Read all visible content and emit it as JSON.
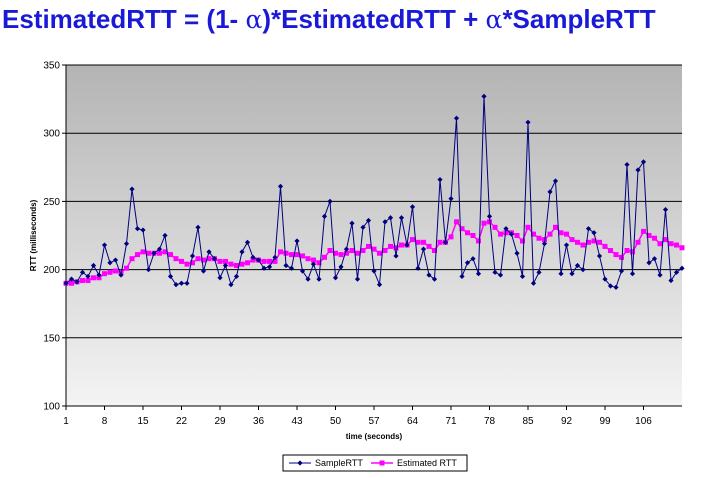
{
  "title": {
    "prefix": "EstimatedRTT = (1- ",
    "alpha1": "α",
    "middle": ")*EstimatedRTT + ",
    "alpha2": "α",
    "suffix": "*SampleRTT"
  },
  "colors": {
    "title": "#1a1ad6",
    "sample": "#000080",
    "estimated": "#ff00ff",
    "plot_bg_top": "#b4b4b4",
    "plot_bg_bottom": "#f4f4f4"
  },
  "chart_data": {
    "type": "line",
    "xlabel": "time (seconds)",
    "ylabel": "RTT (milliseconds)",
    "ylim": [
      100,
      350
    ],
    "yticks": [
      100,
      150,
      200,
      250,
      300,
      350
    ],
    "xlim": [
      1,
      113
    ],
    "xticks": [
      1,
      8,
      15,
      22,
      29,
      36,
      43,
      50,
      57,
      64,
      71,
      78,
      85,
      92,
      99,
      106
    ],
    "grid": "horizontal",
    "legend_position": "bottom",
    "x": [
      1,
      2,
      3,
      4,
      5,
      6,
      7,
      8,
      9,
      10,
      11,
      12,
      13,
      14,
      15,
      16,
      17,
      18,
      19,
      20,
      21,
      22,
      23,
      24,
      25,
      26,
      27,
      28,
      29,
      30,
      31,
      32,
      33,
      34,
      35,
      36,
      37,
      38,
      39,
      40,
      41,
      42,
      43,
      44,
      45,
      46,
      47,
      48,
      49,
      50,
      51,
      52,
      53,
      54,
      55,
      56,
      57,
      58,
      59,
      60,
      61,
      62,
      63,
      64,
      65,
      66,
      67,
      68,
      69,
      70,
      71,
      72,
      73,
      74,
      75,
      76,
      77,
      78,
      79,
      80,
      81,
      82,
      83,
      84,
      85,
      86,
      87,
      88,
      89,
      90,
      91,
      92,
      93,
      94,
      95,
      96,
      97,
      98,
      99,
      100,
      101,
      102,
      103,
      104,
      105,
      106,
      107,
      108,
      109,
      110,
      111,
      112,
      113
    ],
    "series": [
      {
        "name": "SampleRTT",
        "marker": "diamond",
        "values": [
          190,
          193,
          191,
          198,
          195,
          203,
          196,
          218,
          205,
          207,
          196,
          219,
          259,
          230,
          229,
          200,
          212,
          215,
          225,
          195,
          189,
          190,
          190,
          210,
          231,
          199,
          213,
          208,
          194,
          203,
          189,
          195,
          213,
          220,
          209,
          207,
          201,
          202,
          209,
          261,
          203,
          201,
          221,
          199,
          193,
          204,
          193,
          239,
          250,
          194,
          202,
          215,
          234,
          193,
          231,
          236,
          199,
          189,
          235,
          238,
          210,
          238,
          218,
          246,
          201,
          215,
          196,
          193,
          266,
          220,
          252,
          311,
          195,
          205,
          208,
          197,
          327,
          239,
          198,
          196,
          230,
          226,
          212,
          195,
          308,
          190,
          198,
          219,
          257,
          265,
          197,
          218,
          197,
          203,
          200,
          230,
          227,
          210,
          193,
          188,
          187,
          199,
          277,
          197,
          273,
          279,
          205,
          208,
          196,
          244,
          192,
          198,
          201
        ],
        "estimated": false
      },
      {
        "name": "Estimated RTT",
        "marker": "square",
        "values": [
          190,
          190,
          191,
          192,
          192,
          194,
          194,
          197,
          198,
          199,
          198,
          201,
          208,
          211,
          213,
          212,
          212,
          212,
          213,
          211,
          208,
          206,
          204,
          205,
          208,
          207,
          208,
          208,
          206,
          206,
          204,
          203,
          204,
          205,
          207,
          207,
          206,
          206,
          206,
          213,
          212,
          211,
          211,
          210,
          208,
          207,
          205,
          209,
          214,
          212,
          211,
          212,
          214,
          212,
          214,
          217,
          215,
          212,
          214,
          217,
          216,
          218,
          218,
          222,
          220,
          220,
          217,
          214,
          220,
          220,
          224,
          235,
          230,
          227,
          225,
          221,
          234,
          235,
          231,
          226,
          227,
          227,
          225,
          221,
          231,
          226,
          223,
          222,
          226,
          231,
          227,
          226,
          222,
          220,
          218,
          220,
          221,
          220,
          217,
          214,
          211,
          209,
          214,
          213,
          220,
          228,
          225,
          223,
          219,
          222,
          219,
          218,
          216
        ]
      }
    ]
  }
}
